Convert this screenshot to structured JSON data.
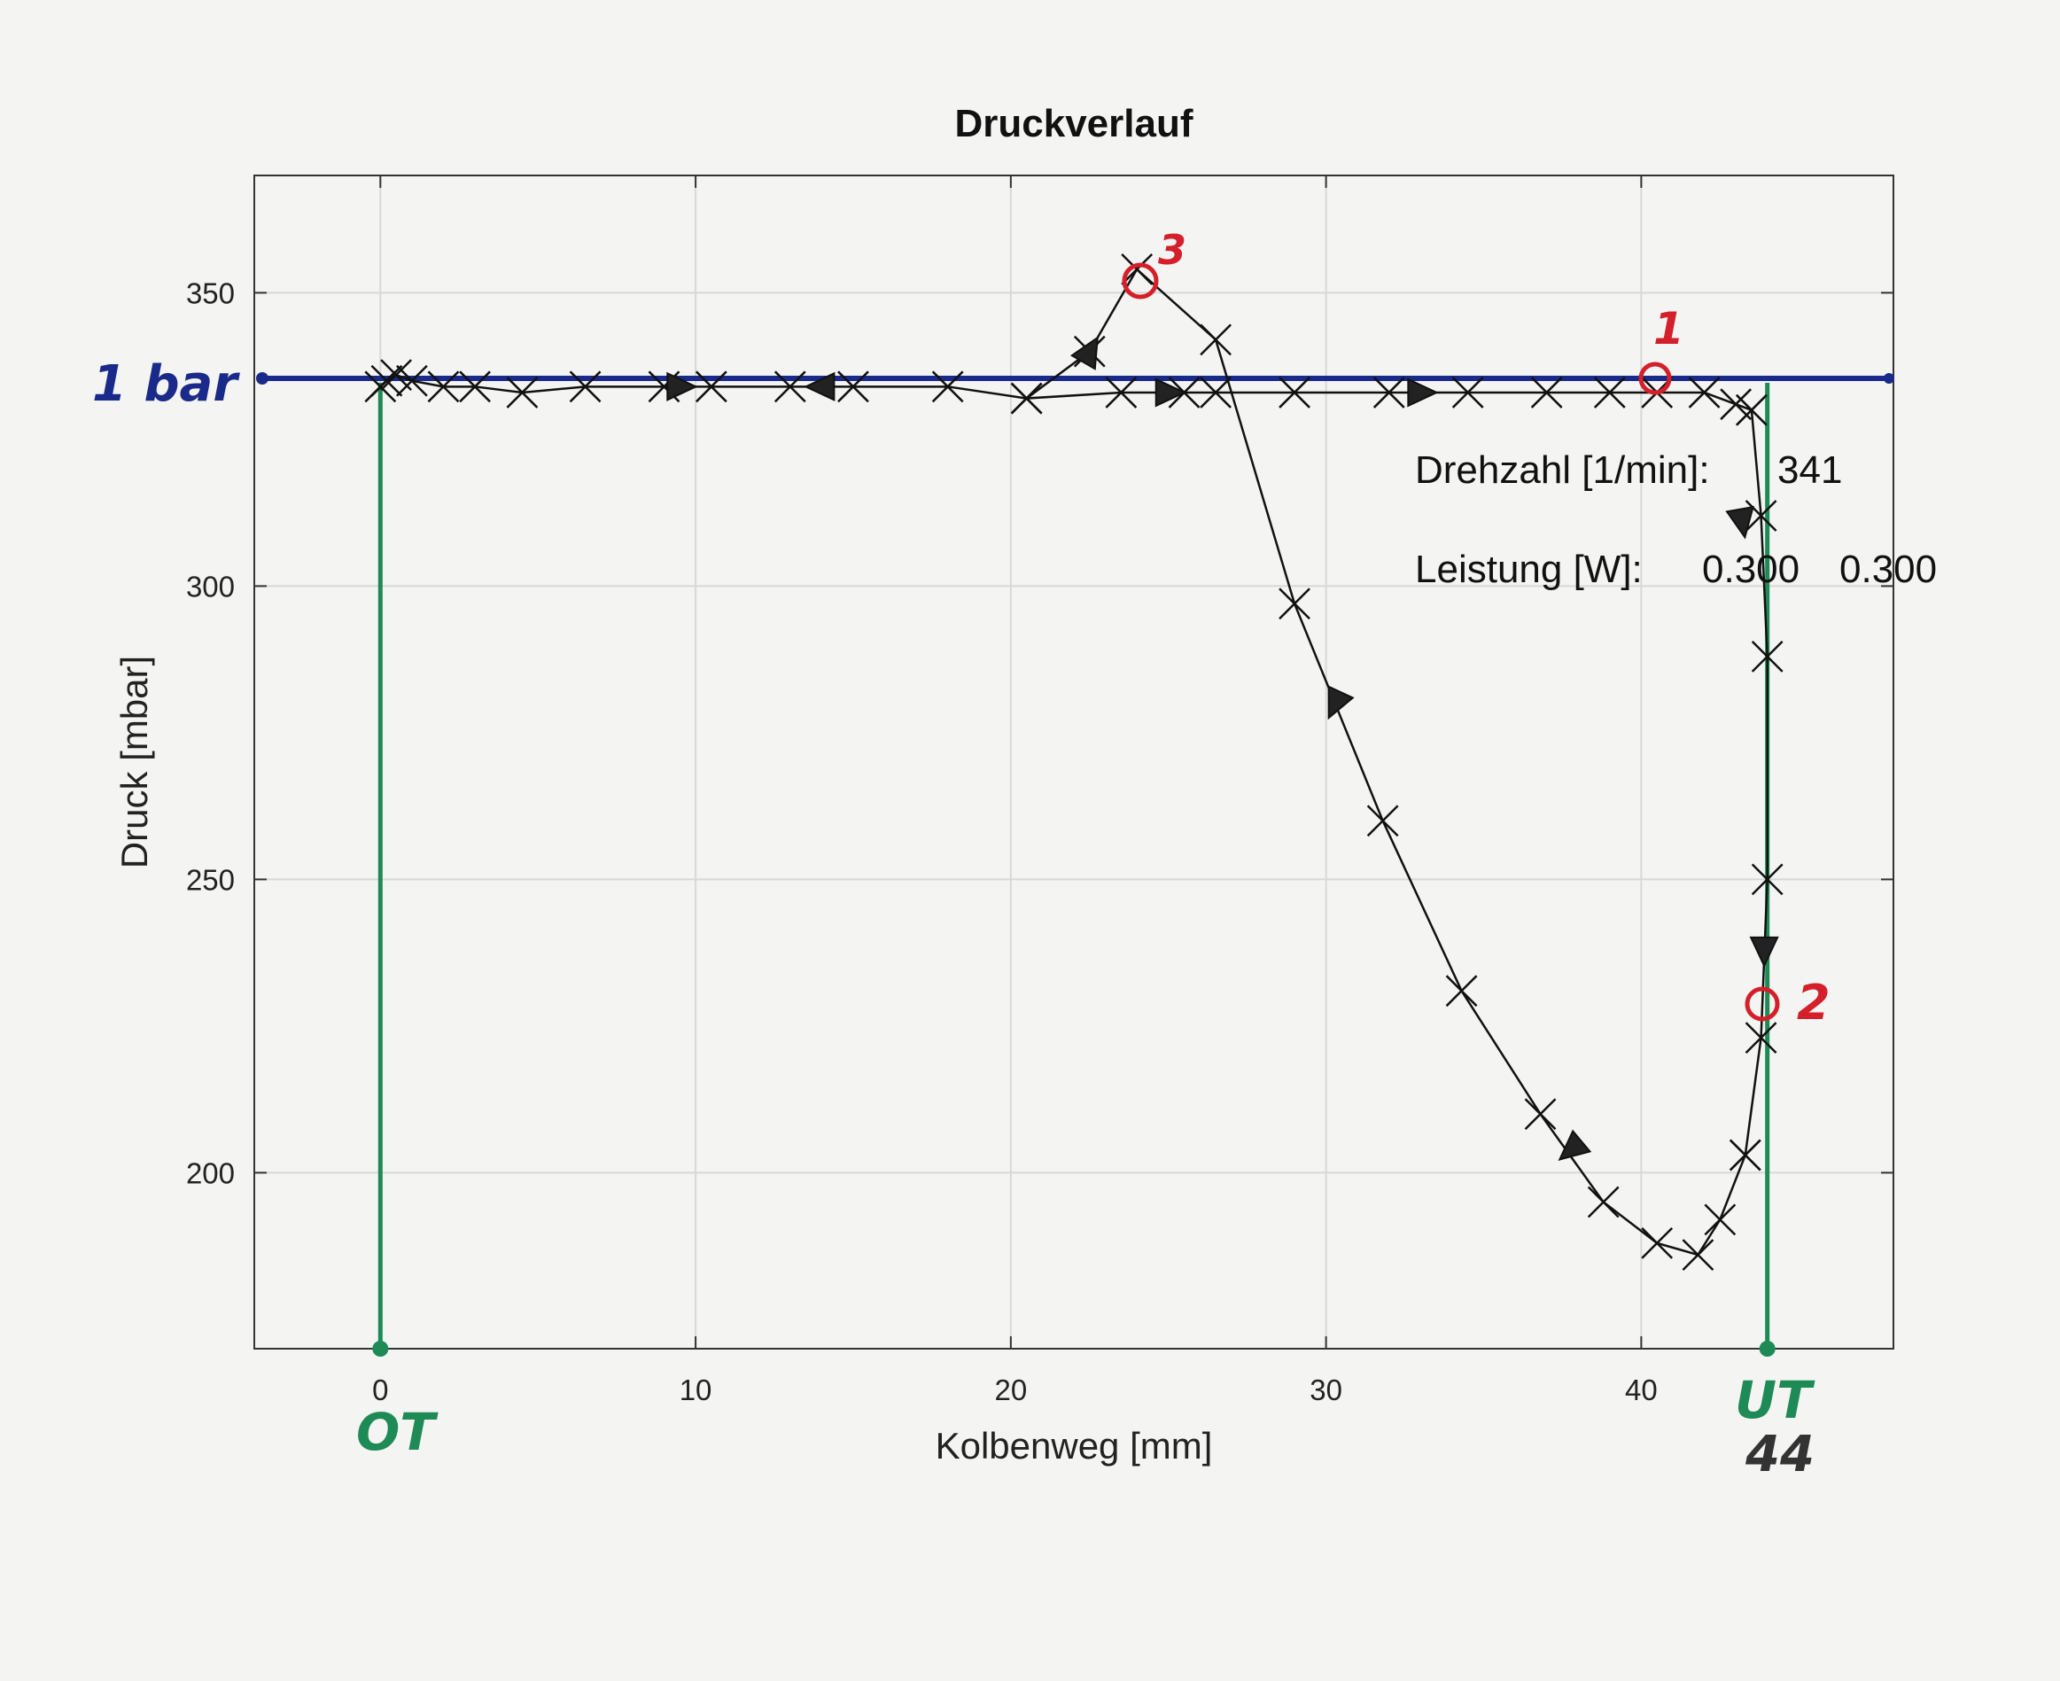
{
  "chart_data": {
    "type": "line",
    "title": "Druckverlauf",
    "xlabel": "Kolbenweg [mm]",
    "ylabel": "Druck [mbar]",
    "xlim": [
      -4,
      48
    ],
    "ylim": [
      170,
      370
    ],
    "xticks": [
      0,
      10,
      20,
      30,
      40
    ],
    "yticks": [
      200,
      250,
      300,
      350
    ],
    "grid": true,
    "series": [
      {
        "x": [
          0,
          0.2,
          0.5,
          1,
          2,
          3,
          4.5,
          6.5,
          9,
          10.5,
          13,
          15,
          18,
          20.5,
          23.5,
          25.5,
          26.5,
          29,
          32,
          34.5,
          37,
          39,
          40.5,
          42,
          43,
          43.5
        ],
        "y": [
          334,
          335,
          336,
          335,
          334,
          334,
          333,
          334,
          334,
          334,
          334,
          334,
          334,
          332,
          333,
          333,
          333,
          333,
          333,
          333,
          333,
          333,
          333,
          333,
          331,
          330
        ]
      },
      {
        "x": [
          43.5,
          43.8,
          44,
          44,
          43.8,
          43.3
        ],
        "y": [
          330,
          312,
          288,
          250,
          223,
          203
        ]
      },
      {
        "x": [
          43.3,
          42.5,
          41.8,
          40.5,
          38.8,
          36.8,
          34.3,
          31.8,
          29,
          26.5,
          24,
          22.5,
          20.5
        ],
        "y": [
          203,
          192,
          186,
          188,
          195,
          210,
          231,
          260,
          297,
          342,
          354,
          340,
          332
        ]
      }
    ],
    "annotations": {
      "drehzahl_label": "Drehzahl [1/min]:",
      "drehzahl_value": "341",
      "leistung_label": "Leistung [W]:",
      "leistung_value1": "0.300",
      "leistung_value2": "0.300"
    },
    "handwritten": {
      "one_bar": "1 bar",
      "ot": "OT",
      "ut": "UT",
      "ut_value": "44",
      "point1": "1",
      "point2": "2",
      "point3": "3"
    }
  }
}
